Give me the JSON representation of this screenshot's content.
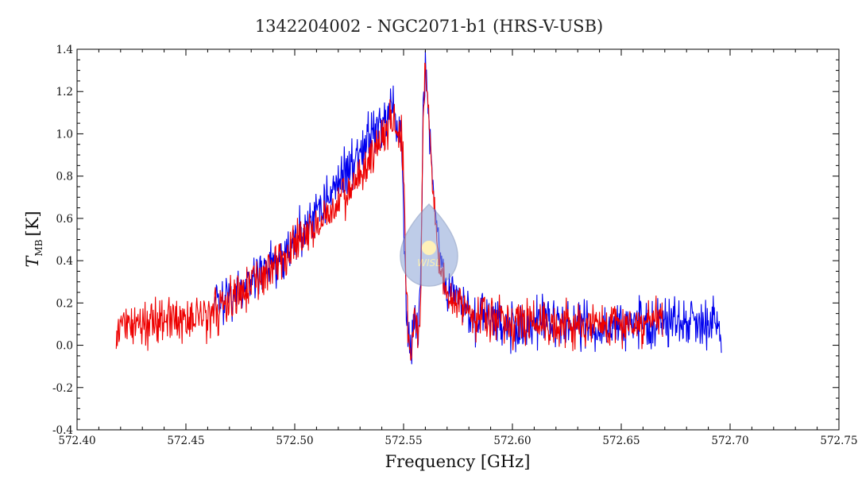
{
  "chart_data": {
    "type": "line",
    "title": "1342204002 - NGC2071-b1 (HRS-V-USB)",
    "xlabel": "Frequency [GHz]",
    "ylabel_main": "T",
    "ylabel_sub": "MB",
    "ylabel_unit": "[K]",
    "xlim": [
      572.4,
      572.75
    ],
    "ylim": [
      -0.4,
      1.4
    ],
    "xticks": [
      572.4,
      572.45,
      572.5,
      572.55,
      572.6,
      572.65,
      572.7,
      572.75
    ],
    "yticks": [
      -0.4,
      -0.2,
      0.0,
      0.2,
      0.4,
      0.6,
      0.8,
      1.0,
      1.2,
      1.4
    ],
    "xtick_labels": [
      "572.40",
      "572.45",
      "572.50",
      "572.55",
      "572.60",
      "572.65",
      "572.70",
      "572.75"
    ],
    "ytick_labels": [
      "-0.4",
      "-0.2",
      "0.0",
      "0.2",
      "0.4",
      "0.6",
      "0.8",
      "1.0",
      "1.2",
      "1.4"
    ],
    "grid": false,
    "legend": "none",
    "watermark_text": "WISL",
    "series": [
      {
        "color": "#0000ee",
        "x": [
          572.463,
          572.47,
          572.475,
          572.48,
          572.485,
          572.49,
          572.495,
          572.5,
          572.505,
          572.51,
          572.515,
          572.52,
          572.525,
          572.53,
          572.535,
          572.54,
          572.545,
          572.549,
          572.55,
          572.551,
          572.552,
          572.553,
          572.554,
          572.555,
          572.556,
          572.557,
          572.558,
          572.559,
          572.56,
          572.561,
          572.562,
          572.563,
          572.564,
          572.565,
          572.567,
          572.57,
          572.575,
          572.58,
          572.585,
          572.59,
          572.6,
          572.61,
          572.62,
          572.63,
          572.64,
          572.65,
          572.66,
          572.67,
          572.68,
          572.69,
          572.696
        ],
        "y": [
          0.2,
          0.22,
          0.25,
          0.3,
          0.34,
          0.38,
          0.42,
          0.48,
          0.56,
          0.63,
          0.7,
          0.78,
          0.85,
          0.92,
          1.0,
          1.05,
          1.08,
          1.0,
          0.65,
          0.2,
          0.05,
          0.0,
          0.02,
          0.1,
          0.05,
          0.1,
          0.4,
          1.05,
          1.3,
          1.2,
          1.0,
          0.85,
          0.7,
          0.55,
          0.4,
          0.26,
          0.22,
          0.16,
          0.14,
          0.12,
          0.1,
          0.1,
          0.1,
          0.09,
          0.09,
          0.09,
          0.1,
          0.11,
          0.12,
          0.12,
          0.1
        ],
        "noise": 0.09
      },
      {
        "color": "#ee0000",
        "x": [
          572.418,
          572.425,
          572.43,
          572.44,
          572.45,
          572.46,
          572.47,
          572.48,
          572.49,
          572.5,
          572.51,
          572.52,
          572.525,
          572.53,
          572.535,
          572.54,
          572.545,
          572.549,
          572.55,
          572.551,
          572.552,
          572.553,
          572.554,
          572.555,
          572.556,
          572.557,
          572.558,
          572.559,
          572.56,
          572.561,
          572.562,
          572.563,
          572.564,
          572.565,
          572.567,
          572.57,
          572.575,
          572.58,
          572.59,
          572.6,
          572.61,
          572.62,
          572.63,
          572.64,
          572.65,
          572.66,
          572.669
        ],
        "y": [
          0.07,
          0.1,
          0.12,
          0.13,
          0.12,
          0.15,
          0.2,
          0.28,
          0.38,
          0.48,
          0.56,
          0.66,
          0.72,
          0.8,
          0.88,
          1.0,
          1.05,
          1.0,
          0.85,
          0.3,
          0.05,
          0.0,
          0.05,
          0.1,
          0.08,
          0.05,
          0.3,
          1.1,
          1.28,
          1.15,
          1.0,
          0.8,
          0.65,
          0.5,
          0.35,
          0.24,
          0.2,
          0.16,
          0.13,
          0.11,
          0.12,
          0.1,
          0.09,
          0.1,
          0.1,
          0.11,
          0.12
        ],
        "noise": 0.08
      }
    ]
  }
}
